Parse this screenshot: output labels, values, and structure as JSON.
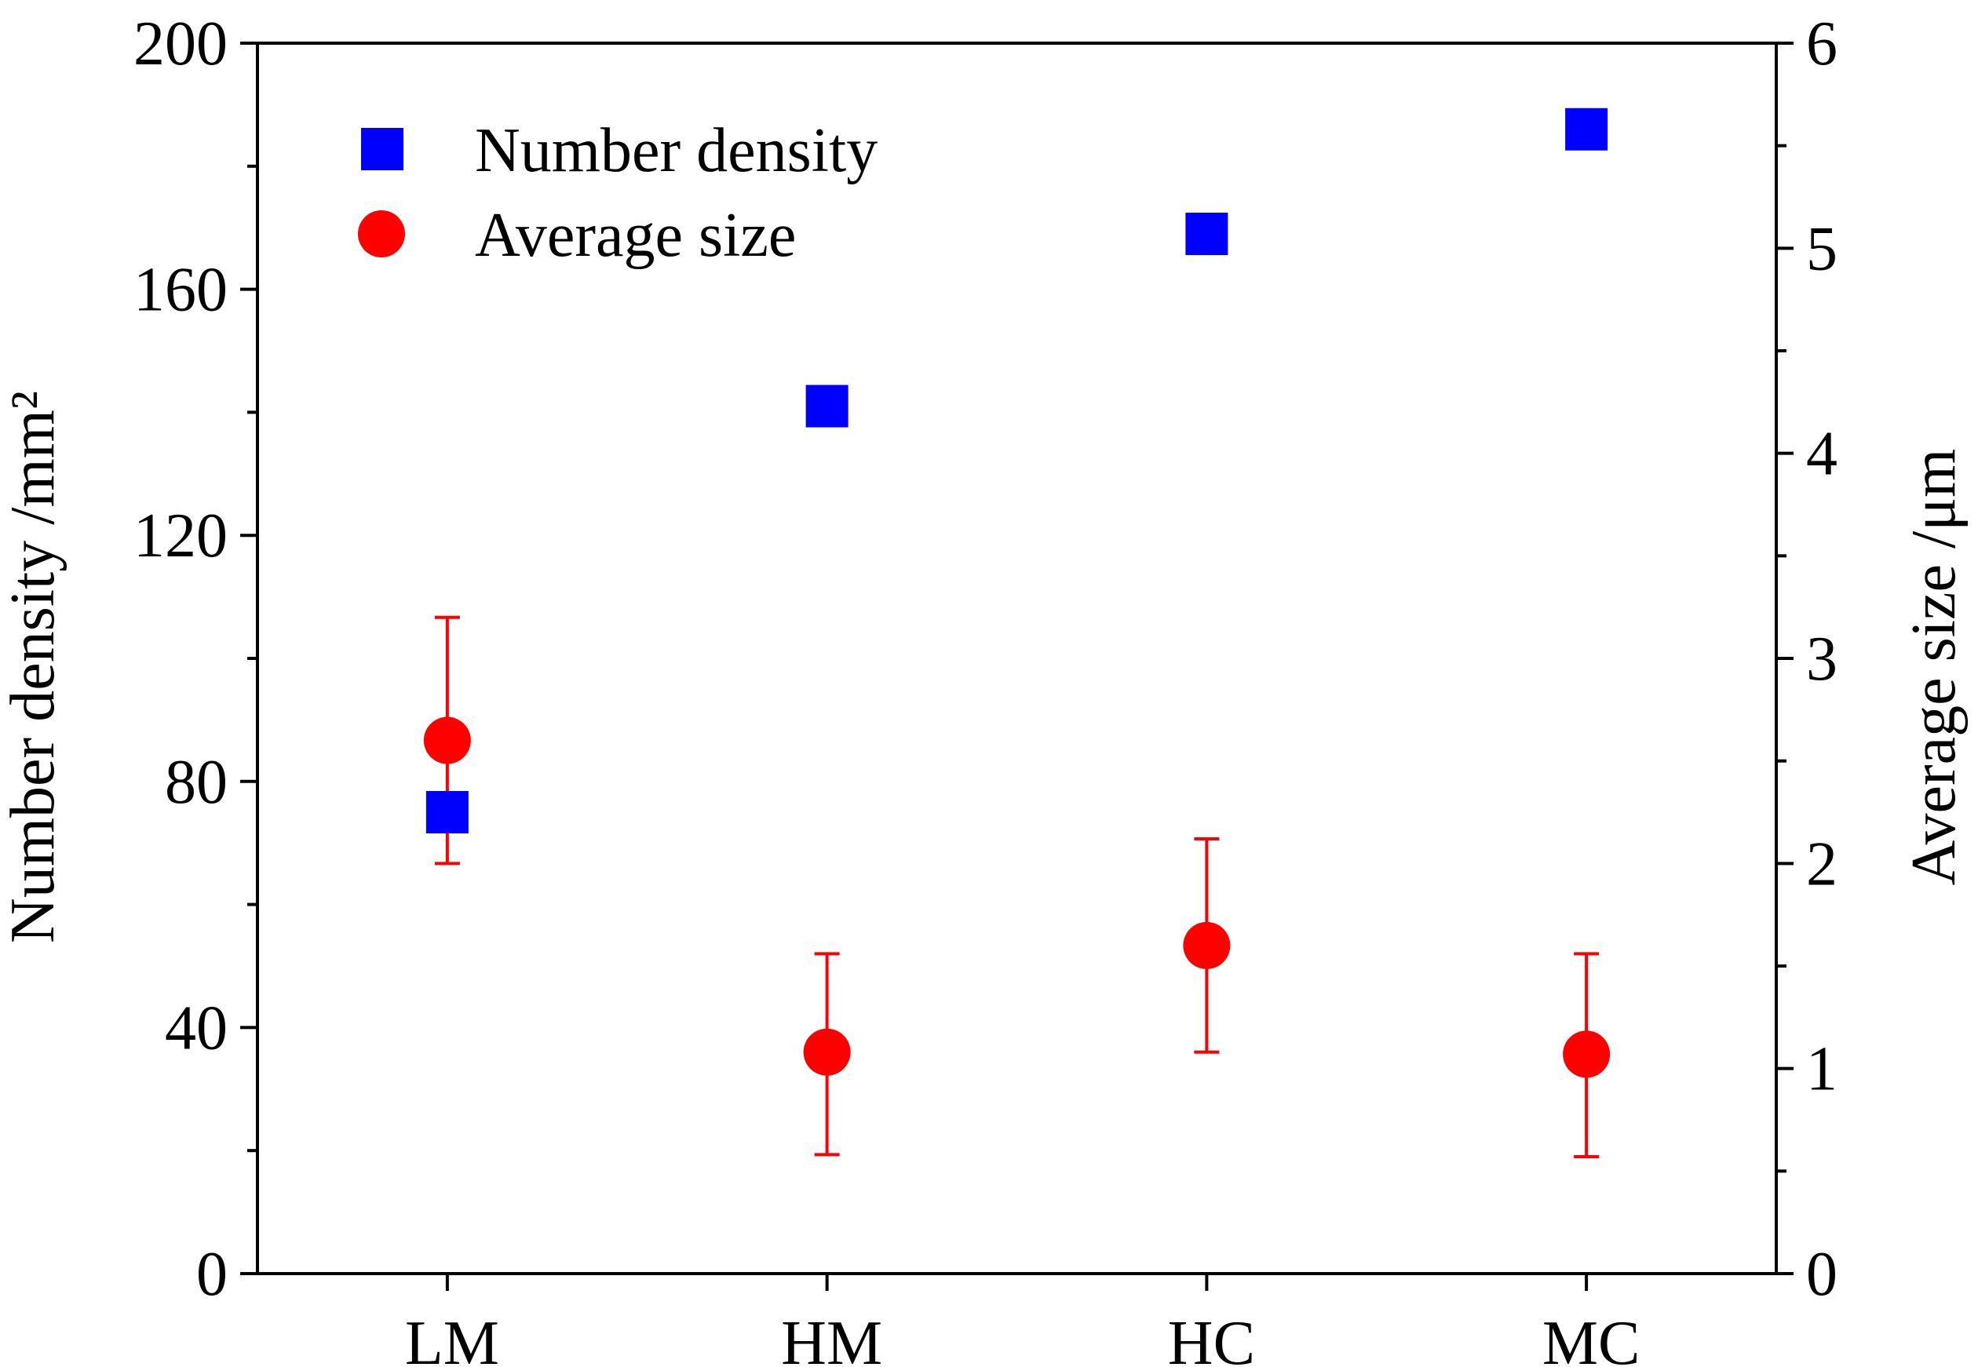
{
  "chart_data": {
    "type": "scatter",
    "categories": [
      "LM",
      "HM",
      "HC",
      "MC"
    ],
    "left_axis": {
      "label": "Number density /mm²",
      "range": [
        0,
        200
      ],
      "major_ticks": [
        0,
        40,
        80,
        120,
        160,
        200
      ],
      "minor_step": 20
    },
    "right_axis": {
      "label": "Average size /μm",
      "range": [
        0,
        6
      ],
      "major_ticks": [
        0,
        1,
        2,
        3,
        4,
        5,
        6
      ],
      "minor_step": 0.5
    },
    "series": [
      {
        "name": "Number density",
        "axis": "left",
        "marker": "square",
        "color": "#0000ff",
        "values": [
          75,
          141,
          169,
          186
        ]
      },
      {
        "name": "Average size",
        "axis": "right",
        "marker": "circle",
        "color": "#ff0000",
        "values": [
          2.6,
          1.08,
          1.6,
          1.07
        ],
        "error_low": [
          2.0,
          0.58,
          1.08,
          0.57
        ],
        "error_high": [
          3.2,
          1.56,
          2.12,
          1.56
        ]
      }
    ],
    "legend_position": "top-left",
    "grid": false
  }
}
